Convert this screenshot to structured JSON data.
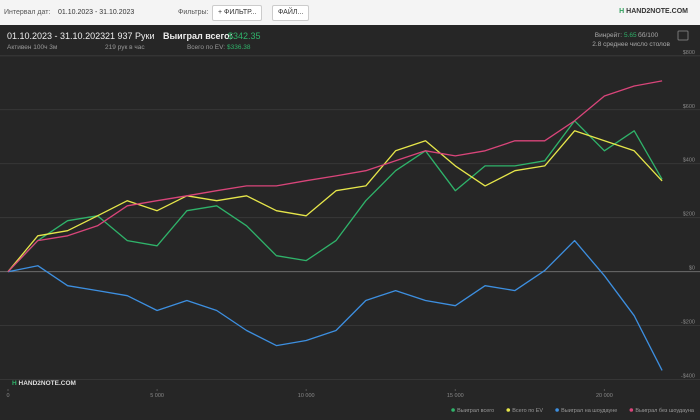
{
  "toolbar": {
    "date_label": "Интервал дат:",
    "date_range": "01.10.2023 - 31.10.2023",
    "filters_label": "Фильтры:",
    "filter_button": "+ ФИЛЬТР...",
    "file_button": "ФАЙЛ...",
    "logo": "HAND2NOTE.COM"
  },
  "summary": {
    "period": "01.10.2023 - 31.10.2023",
    "active": "Активен 100ч 3м",
    "hands": "21 937 Руки",
    "hands_per_hour": "219 рук в час",
    "won_label": "Выиграл всего:",
    "won_value": "$342.35",
    "ev_label": "Всего по EV:",
    "ev_value": "$336.38",
    "winrate_label": "Винрейт:",
    "winrate_value": "5.65",
    "winrate_unit": "бб/100",
    "tables": "2.8 среднее число столов"
  },
  "chart_data": {
    "type": "line",
    "watermark": "HAND2NOTE.COM",
    "x": [
      0,
      1000,
      2000,
      3000,
      4000,
      5000,
      6000,
      7000,
      8000,
      9000,
      10000,
      11000,
      12000,
      13000,
      14000,
      15000,
      16000,
      17000,
      18000,
      19000,
      20000,
      21000,
      21937
    ],
    "xlim": [
      0,
      22100
    ],
    "xticks": [
      0,
      {
        "value": 5000,
        "label": "5 000"
      },
      {
        "value": 10000,
        "label": "10 000"
      },
      {
        "value": 15000,
        "label": "15 000"
      },
      {
        "value": 20000,
        "label": "20 000"
      }
    ],
    "ylim": [
      -420,
      840
    ],
    "yticks": [
      {
        "value": -400,
        "label": "-$400"
      },
      {
        "value": -200,
        "label": "-$200"
      },
      {
        "value": 0,
        "label": "$0"
      },
      {
        "value": 200,
        "label": "$200"
      },
      {
        "value": 400,
        "label": "$400"
      },
      {
        "value": 600,
        "label": "$600"
      },
      {
        "value": 800,
        "label": "$800"
      }
    ],
    "grid": true,
    "series": [
      {
        "name": "Выиграл всего",
        "color": "#2fb36a",
        "values": [
          0,
          115,
          189,
          207,
          115,
          96,
          226,
          244,
          170,
          59,
          41,
          115,
          263,
          374,
          448,
          300,
          392,
          392,
          411,
          559,
          448,
          522,
          342.35
        ]
      },
      {
        "name": "Всего по EV",
        "color": "#e6e64a",
        "values": [
          0,
          133,
          152,
          207,
          263,
          226,
          281,
          263,
          281,
          226,
          207,
          300,
          318,
          448,
          485,
          392,
          318,
          374,
          392,
          522,
          485,
          448,
          336.38
        ]
      },
      {
        "name": "Выиграл на шоудауне",
        "color": "#3d8fe0",
        "values": [
          0,
          22,
          -52,
          -70,
          -89,
          -144,
          -107,
          -144,
          -218,
          -274,
          -255,
          -218,
          -107,
          -70,
          -107,
          -126,
          -52,
          -70,
          4,
          115,
          -15,
          -163,
          -366
        ]
      },
      {
        "name": "Выиграл без шоудауна",
        "color": "#d9457a",
        "values": [
          0,
          115,
          133,
          170,
          244,
          263,
          281,
          300,
          318,
          318,
          337,
          355,
          374,
          411,
          448,
          429,
          448,
          485,
          485,
          559,
          651,
          688,
          707
        ]
      }
    ]
  }
}
